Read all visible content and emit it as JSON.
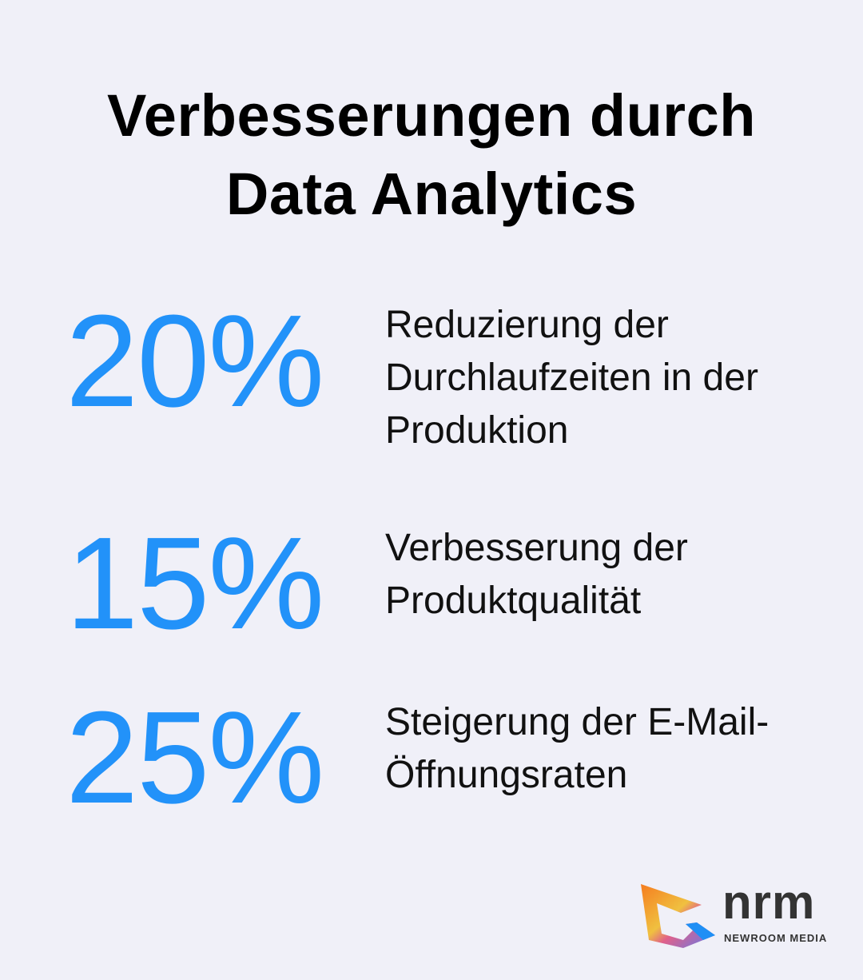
{
  "title": {
    "line1": "Verbesserungen durch",
    "line2": "Data Analytics"
  },
  "accent_color": "#2292f9",
  "stats": [
    {
      "value": "20%",
      "lines": [
        "Reduzierung der",
        "Durchlaufzeiten in der",
        "Produktion"
      ]
    },
    {
      "value": "15%",
      "lines": [
        "Verbesserung der",
        "Produktqualität"
      ]
    },
    {
      "value": "25%",
      "lines": [
        "Steigerung der E-Mail-",
        "Öffnungsraten"
      ]
    }
  ],
  "logo": {
    "wordmark": "nrm",
    "tagline": "NEWROOM MEDIA"
  }
}
